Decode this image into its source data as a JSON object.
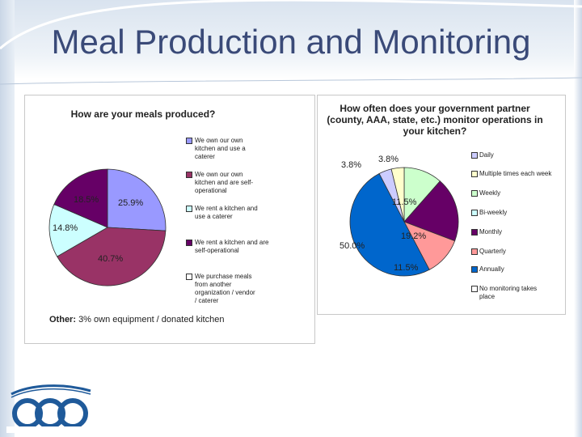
{
  "slide": {
    "title": "Meal Production and Monitoring"
  },
  "chart_data": [
    {
      "type": "pie",
      "title": "How are your meals produced?",
      "slices": [
        {
          "label": "We own our own kitchen and use a caterer",
          "value": 25.9,
          "label_text": "25.9%",
          "color": "#9999ff"
        },
        {
          "label": "We own our own kitchen and are self-operational",
          "value": 40.7,
          "label_text": "40.7%",
          "color": "#993366"
        },
        {
          "label": "We rent a kitchen and use a caterer",
          "value": 14.8,
          "label_text": "14.8%",
          "color": "#ccffff"
        },
        {
          "label": "We rent a kitchen and are self-operational",
          "value": 18.5,
          "label_text": "18.5%",
          "color": "#660066"
        },
        {
          "label": "We purchase meals from another organization / vendor / caterer",
          "value": 0,
          "label_text": "",
          "color": "#ffffff"
        }
      ],
      "note_label": "Other:",
      "note_text": "3% own equipment / donated kitchen"
    },
    {
      "type": "pie",
      "title": "How often does your government partner (county, AAA, state, etc.) monitor operations in your kitchen?",
      "slices": [
        {
          "label": "Daily",
          "value": 3.8,
          "label_text": "3.8%",
          "color": "#ccccff"
        },
        {
          "label": "Multiple times each week",
          "value": 3.8,
          "label_text": "3.8%",
          "color": "#ffffcc"
        },
        {
          "label": "Weekly",
          "value": 11.5,
          "label_text": "11.5%",
          "color": "#ccffcc"
        },
        {
          "label": "Bi-weekly",
          "value": 0,
          "label_text": "",
          "color": "#ccffff"
        },
        {
          "label": "Monthly",
          "value": 19.2,
          "label_text": "19.2%",
          "color": "#660066"
        },
        {
          "label": "Quarterly",
          "value": 11.5,
          "label_text": "11.5%",
          "color": "#ff9999"
        },
        {
          "label": "Annually",
          "value": 50.0,
          "label_text": "50.0%",
          "color": "#0066cc"
        },
        {
          "label": "No monitoring takes place",
          "value": 0,
          "label_text": "",
          "color": "#ffffff"
        }
      ]
    }
  ]
}
